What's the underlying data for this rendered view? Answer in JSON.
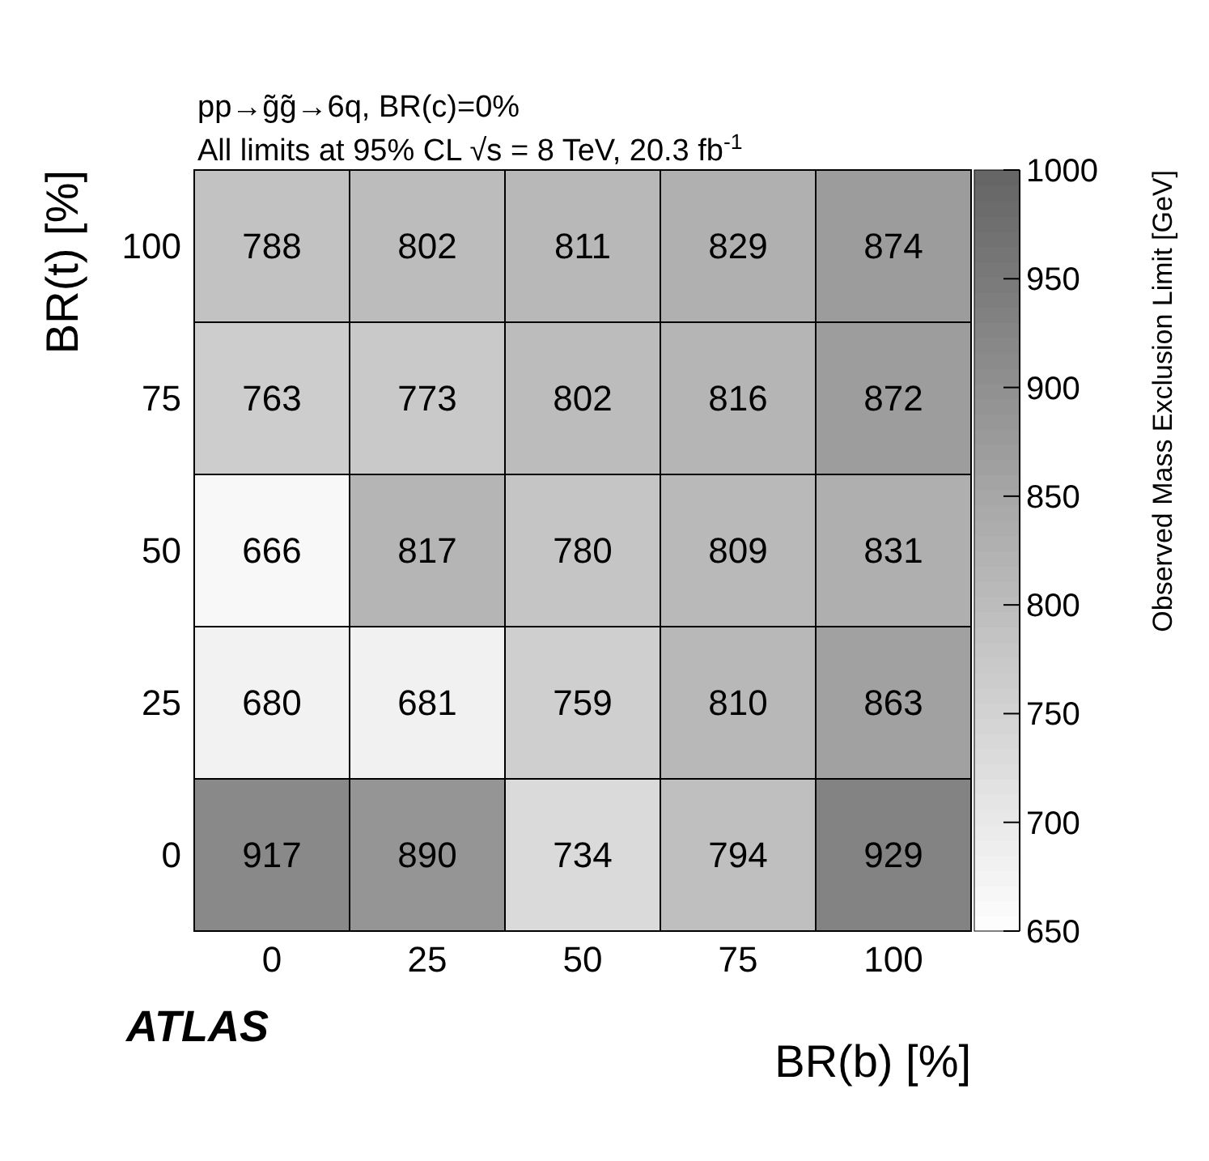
{
  "chart_data": {
    "type": "heatmap",
    "title": "pp→g̃g̃→6q, BR(c)=0%",
    "subtitle": "All limits at 95% CL    √s = 8 TeV, 20.3 fb$^{-1}$",
    "xlabel": "BR(b) [%]",
    "ylabel": "BR(t) [%]",
    "clabel": "Observed Mass Exclusion Limit [GeV]",
    "categories": [
      "0",
      "25",
      "50",
      "75",
      "100"
    ],
    "y_categories": [
      "100",
      "75",
      "50",
      "25",
      "0"
    ],
    "cells": [
      [
        788,
        802,
        811,
        829,
        874
      ],
      [
        763,
        773,
        802,
        816,
        872
      ],
      [
        666,
        817,
        780,
        809,
        831
      ],
      [
        680,
        681,
        759,
        810,
        863
      ],
      [
        917,
        890,
        734,
        794,
        929
      ]
    ],
    "clim": [
      650,
      1000
    ],
    "cticks": [
      650,
      700,
      750,
      800,
      850,
      900,
      950,
      1000
    ],
    "data_labels": true,
    "annotations": [
      "ATLAS"
    ]
  }
}
